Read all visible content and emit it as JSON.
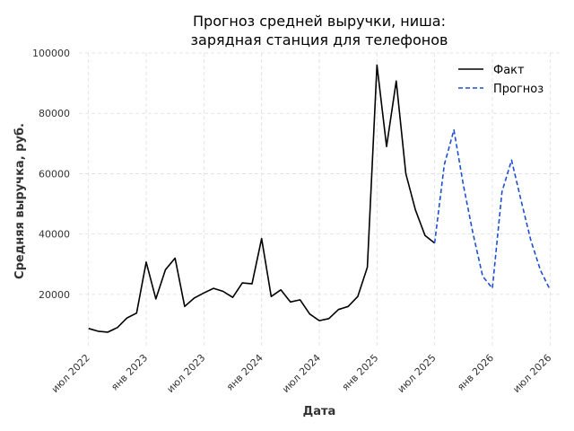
{
  "chart_data": {
    "type": "line",
    "title": [
      "Прогноз средней выручки, ниша:",
      "зарядная станция для телефонов"
    ],
    "xlabel": "Дата",
    "ylabel": "Средняя выручка, руб.",
    "ylim": [
      3000,
      100000
    ],
    "y_ticks": [
      20000,
      40000,
      60000,
      80000,
      100000
    ],
    "y_tick_labels": [
      "20000",
      "40000",
      "60000",
      "80000",
      "100000"
    ],
    "x_ticks": [
      "2022-07",
      "2023-01",
      "2023-07",
      "2024-01",
      "2024-07",
      "2025-01",
      "2025-07",
      "2026-01",
      "2026-07"
    ],
    "x_tick_labels": [
      "июл 2022",
      "янв 2023",
      "июл 2023",
      "янв 2024",
      "июл 2024",
      "янв 2025",
      "июл 2025",
      "янв 2026",
      "июл 2026"
    ],
    "x_range": [
      "2022-06",
      "2026-08"
    ],
    "grid": true,
    "legend_position": "top-right",
    "colors": {
      "actual": "#000000",
      "forecast": "#1f4fd1"
    },
    "series": [
      {
        "name": "Факт",
        "style": "solid",
        "x": [
          "2022-07",
          "2022-08",
          "2022-09",
          "2022-10",
          "2022-11",
          "2022-12",
          "2023-01",
          "2023-02",
          "2023-03",
          "2023-04",
          "2023-05",
          "2023-06",
          "2023-07",
          "2023-08",
          "2023-09",
          "2023-10",
          "2023-11",
          "2023-12",
          "2024-01",
          "2024-02",
          "2024-03",
          "2024-04",
          "2024-05",
          "2024-06",
          "2024-07",
          "2024-08",
          "2024-09",
          "2024-10",
          "2024-11",
          "2024-12",
          "2025-01",
          "2025-02",
          "2025-03",
          "2025-04",
          "2025-05",
          "2025-06",
          "2025-07"
        ],
        "values": [
          8700,
          7800,
          7500,
          9000,
          12200,
          13800,
          30700,
          18500,
          28200,
          32000,
          16000,
          18800,
          20500,
          22000,
          21000,
          19000,
          23800,
          23500,
          38500,
          19300,
          21500,
          17500,
          18200,
          13500,
          11300,
          12000,
          15000,
          16000,
          19300,
          29000,
          96000,
          69000,
          90700,
          60000,
          48000,
          39500,
          37000
        ]
      },
      {
        "name": "Прогноз",
        "style": "dashed",
        "x": [
          "2025-07",
          "2025-08",
          "2025-09",
          "2025-10",
          "2025-11",
          "2025-12",
          "2026-01",
          "2026-02",
          "2026-03",
          "2026-04",
          "2026-05",
          "2026-06",
          "2026-07"
        ],
        "values": [
          37000,
          63000,
          74500,
          56000,
          40000,
          26000,
          22000,
          54000,
          64500,
          51000,
          38000,
          28000,
          21500
        ]
      }
    ]
  }
}
